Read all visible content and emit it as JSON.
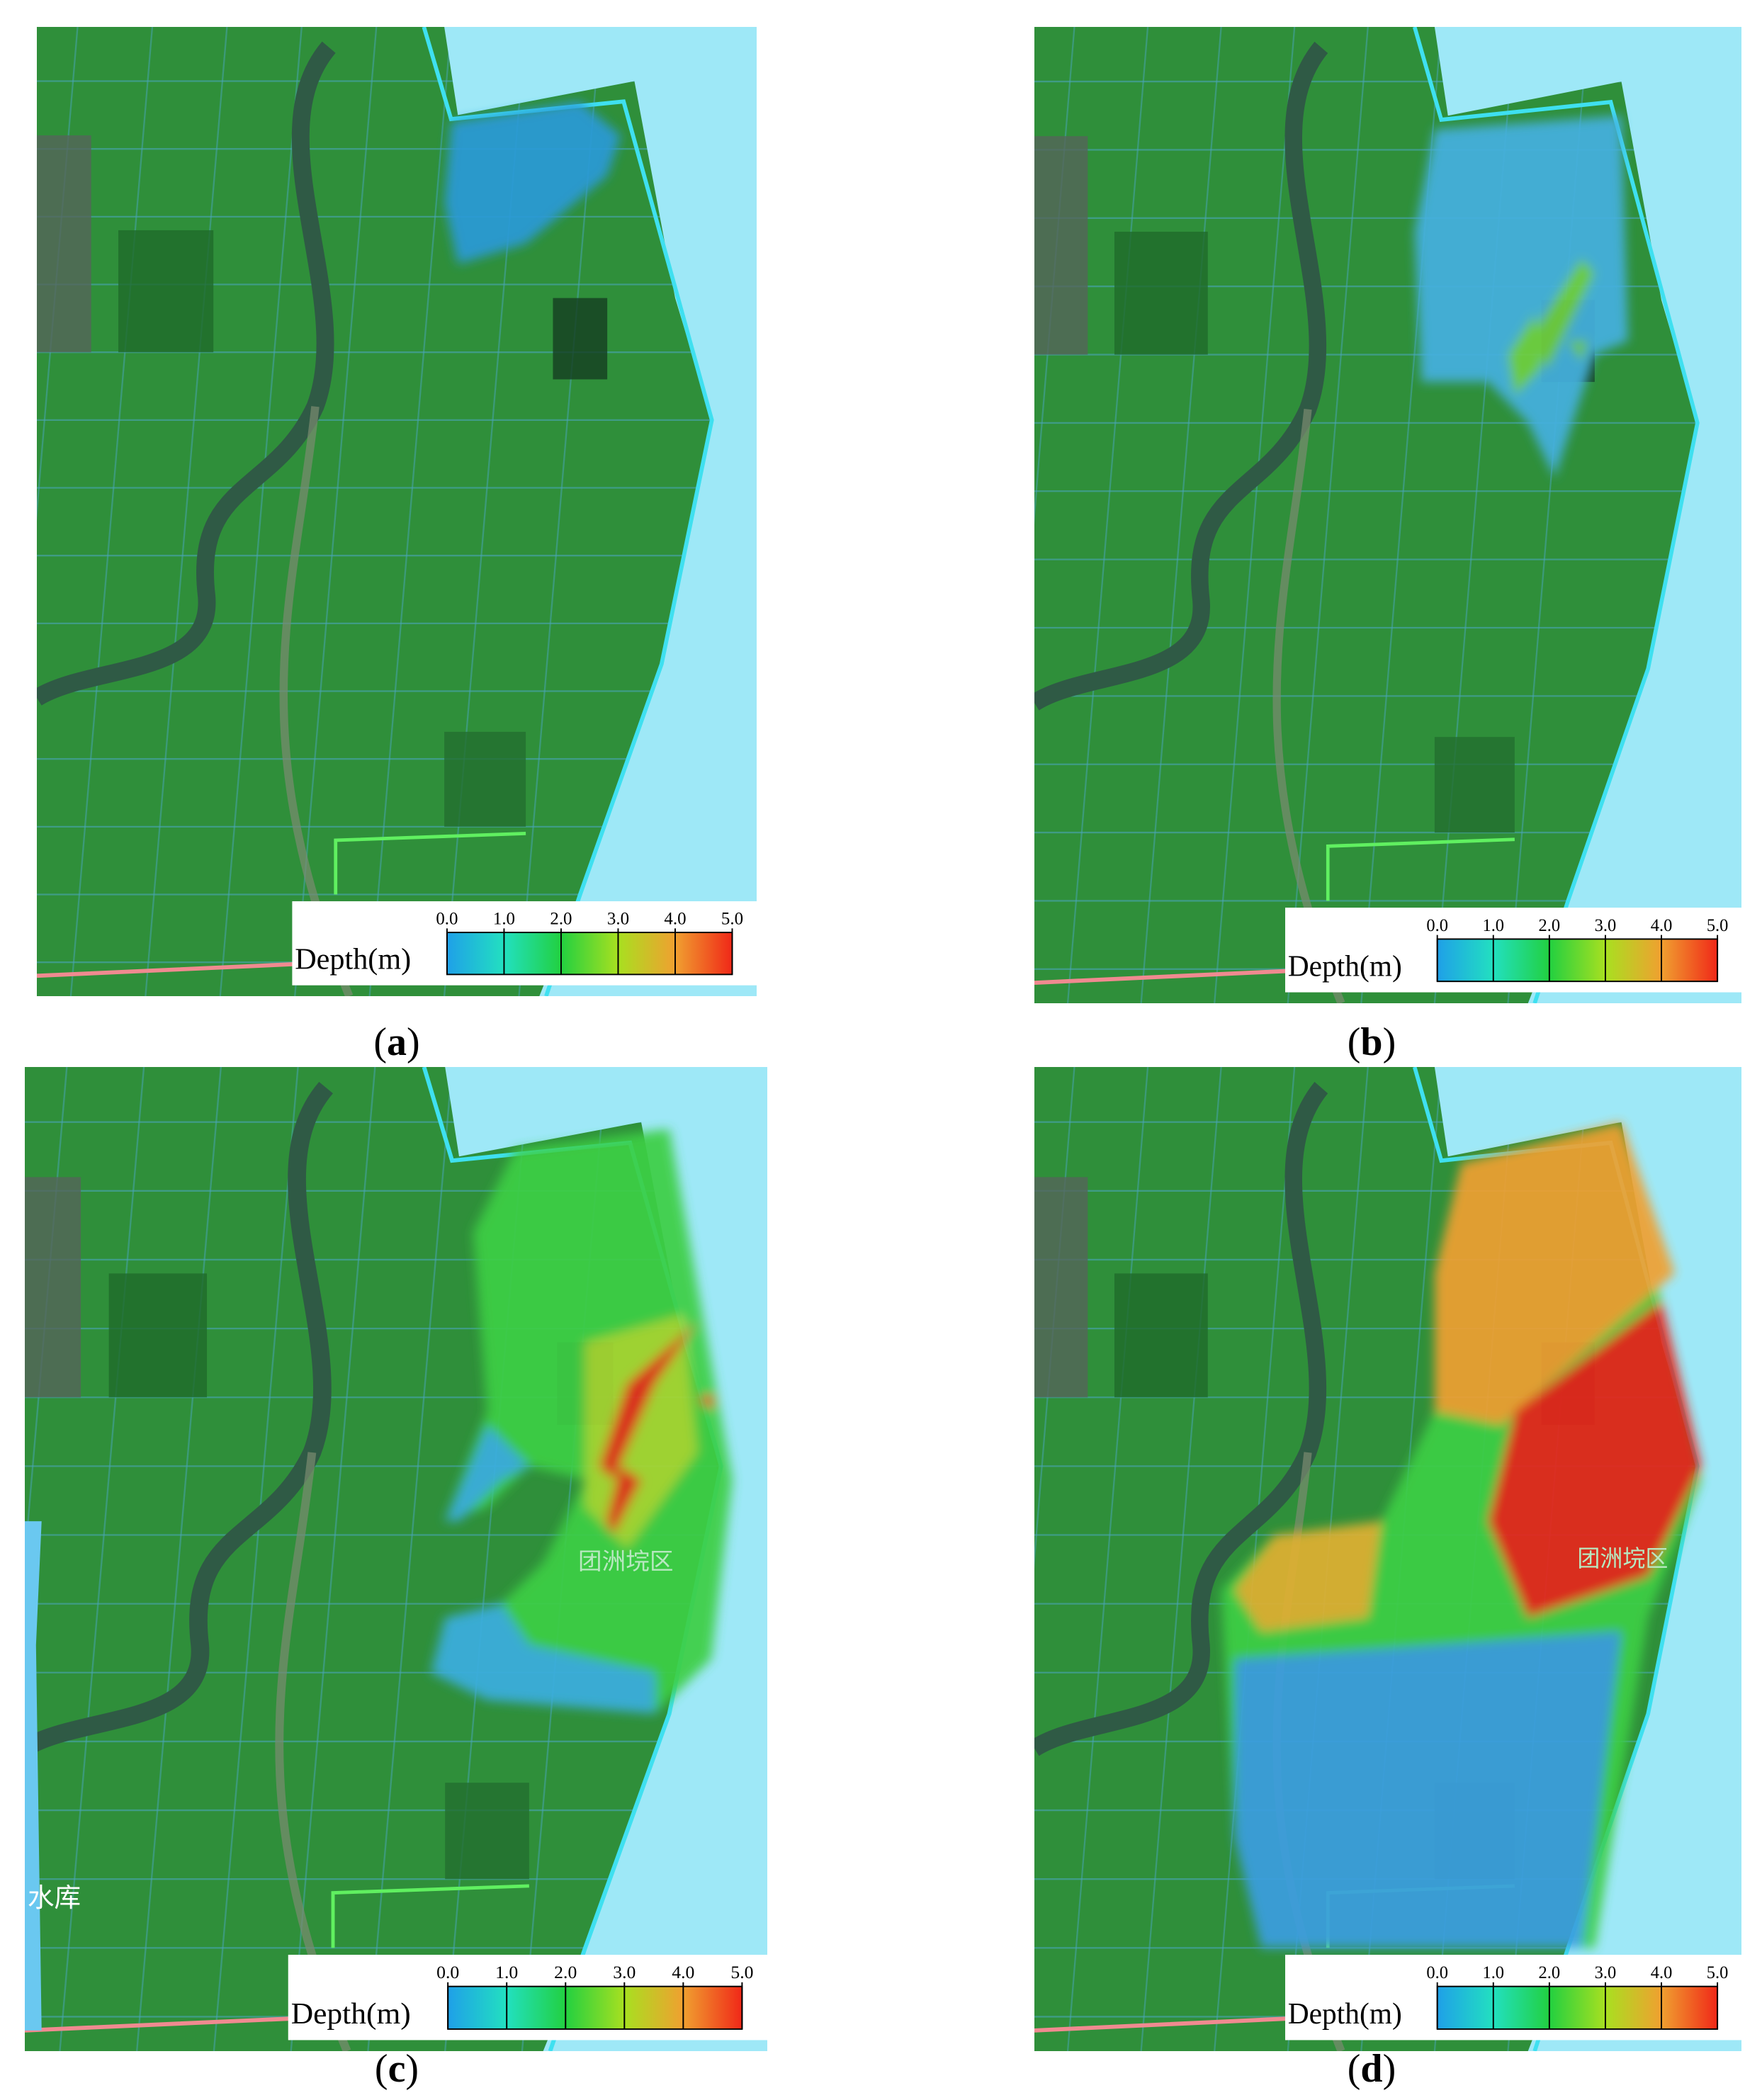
{
  "legend": {
    "title": "Depth(m)",
    "ticks": [
      {
        "value": 0,
        "label": "0.0"
      },
      {
        "value": 1,
        "label": "1.0"
      },
      {
        "value": 2,
        "label": "2.0"
      },
      {
        "value": 3,
        "label": "3.0"
      },
      {
        "value": 4,
        "label": "4.0"
      },
      {
        "value": 5,
        "label": "5.0"
      }
    ]
  },
  "panels": [
    {
      "caption": [
        "(",
        "a",
        ")"
      ],
      "map_labels": []
    },
    {
      "caption": [
        "(",
        "b",
        ")"
      ],
      "map_labels": []
    },
    {
      "caption": [
        "(",
        "c",
        ")"
      ],
      "map_labels": [
        "团洲垸区",
        "水库"
      ]
    },
    {
      "caption": [
        "(",
        "d",
        ")"
      ],
      "map_labels": [
        "团洲垸区"
      ]
    }
  ]
}
